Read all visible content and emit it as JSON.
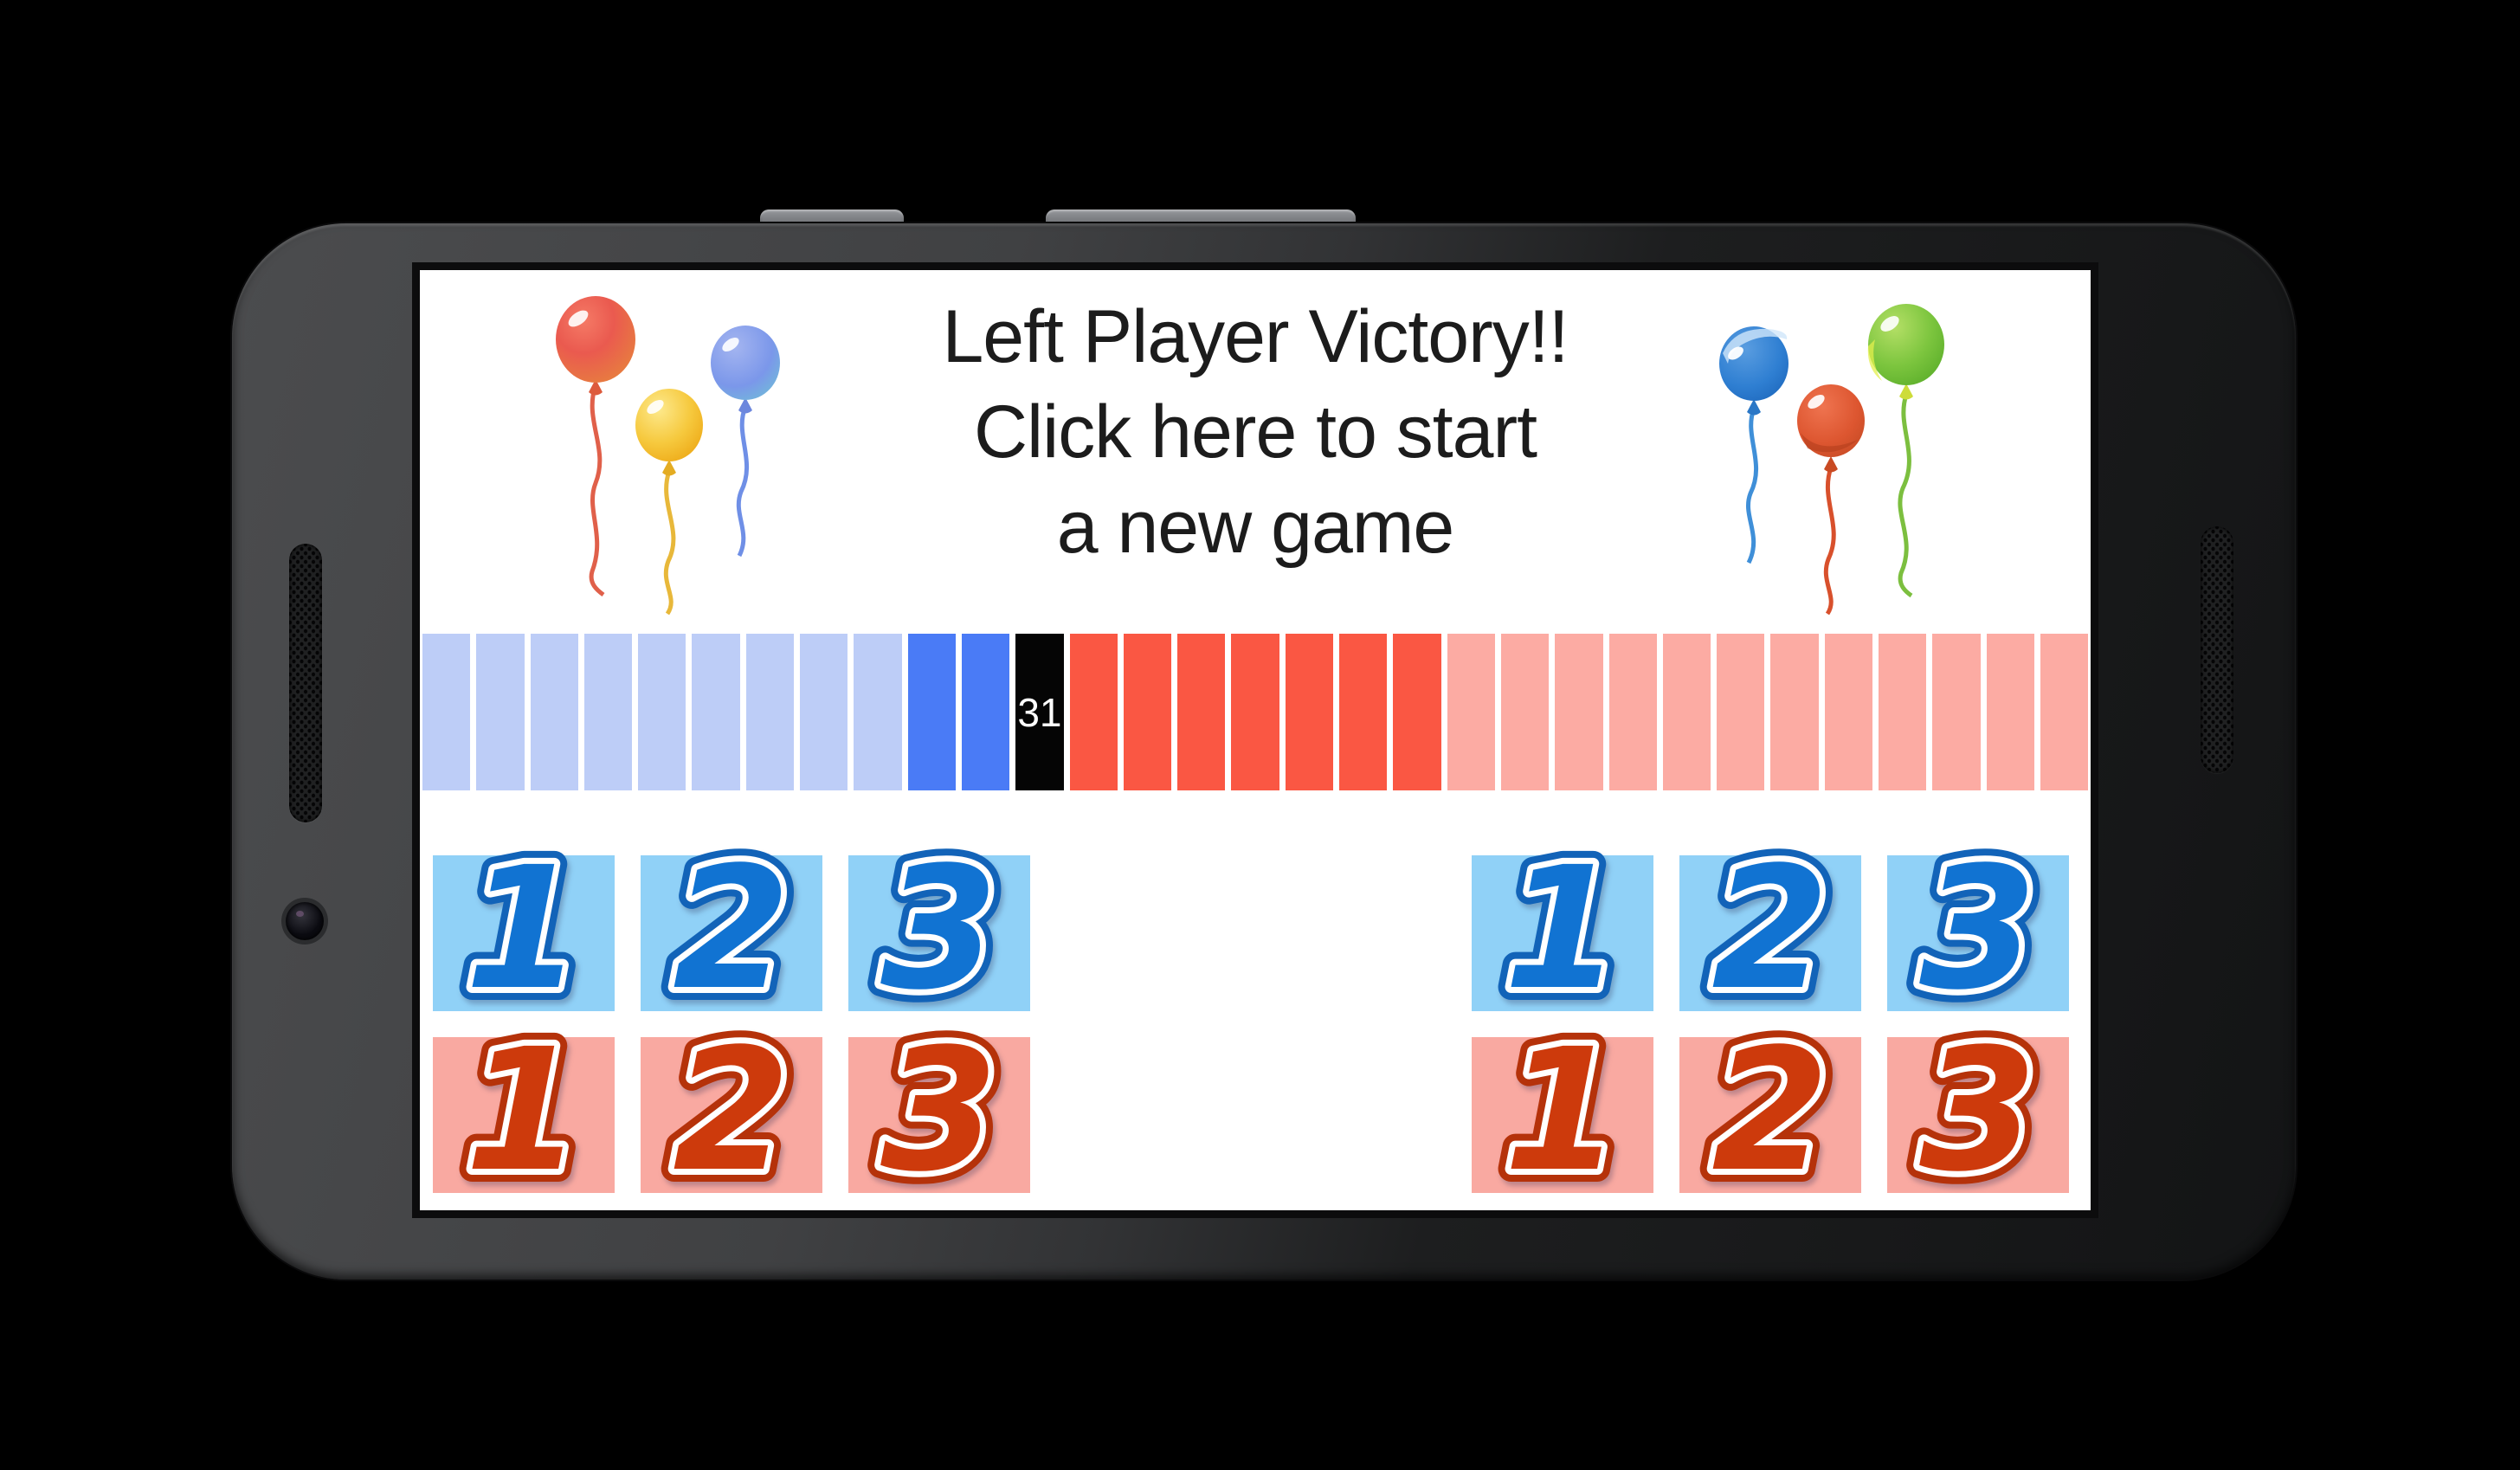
{
  "app": {
    "title_lines": [
      "Left Player Victory!!",
      "Click here to start",
      "a new game"
    ]
  },
  "number_line": {
    "current_label": "31",
    "groups": [
      {
        "state": "blue-pale",
        "count": 9
      },
      {
        "state": "blue-bright",
        "count": 2
      },
      {
        "state": "current",
        "count": 1
      },
      {
        "state": "red-bright",
        "count": 7
      },
      {
        "state": "red-pale",
        "count": 12
      }
    ],
    "colors": {
      "blue_pale": "#bdcdf7",
      "blue_bright": "#4a7bf6",
      "current_bg": "#050505",
      "current_text": "#ffffff",
      "red_bright": "#fa5743",
      "red_pale": "#fcaba3"
    }
  },
  "controls": {
    "left_player": {
      "blue_buttons": [
        "1",
        "2",
        "3"
      ],
      "red_buttons": [
        "1",
        "2",
        "3"
      ]
    },
    "right_player": {
      "blue_buttons": [
        "1",
        "2",
        "3"
      ],
      "red_buttons": [
        "1",
        "2",
        "3"
      ]
    },
    "colors": {
      "blue_button_bg": "#90d1f7",
      "blue_numeral": "#1173d2",
      "blue_outline": "#1263b8",
      "red_button_bg": "#f9a9a1",
      "red_numeral": "#cd3a0c",
      "red_outline": "#b5320a"
    }
  },
  "decorations": {
    "left_balloons": [
      "red-balloon-icon",
      "yellow-balloon-icon",
      "blue-balloon-icon"
    ],
    "right_balloons": [
      "blue-balloon-icon",
      "red-balloon-icon",
      "green-balloon-icon"
    ]
  }
}
